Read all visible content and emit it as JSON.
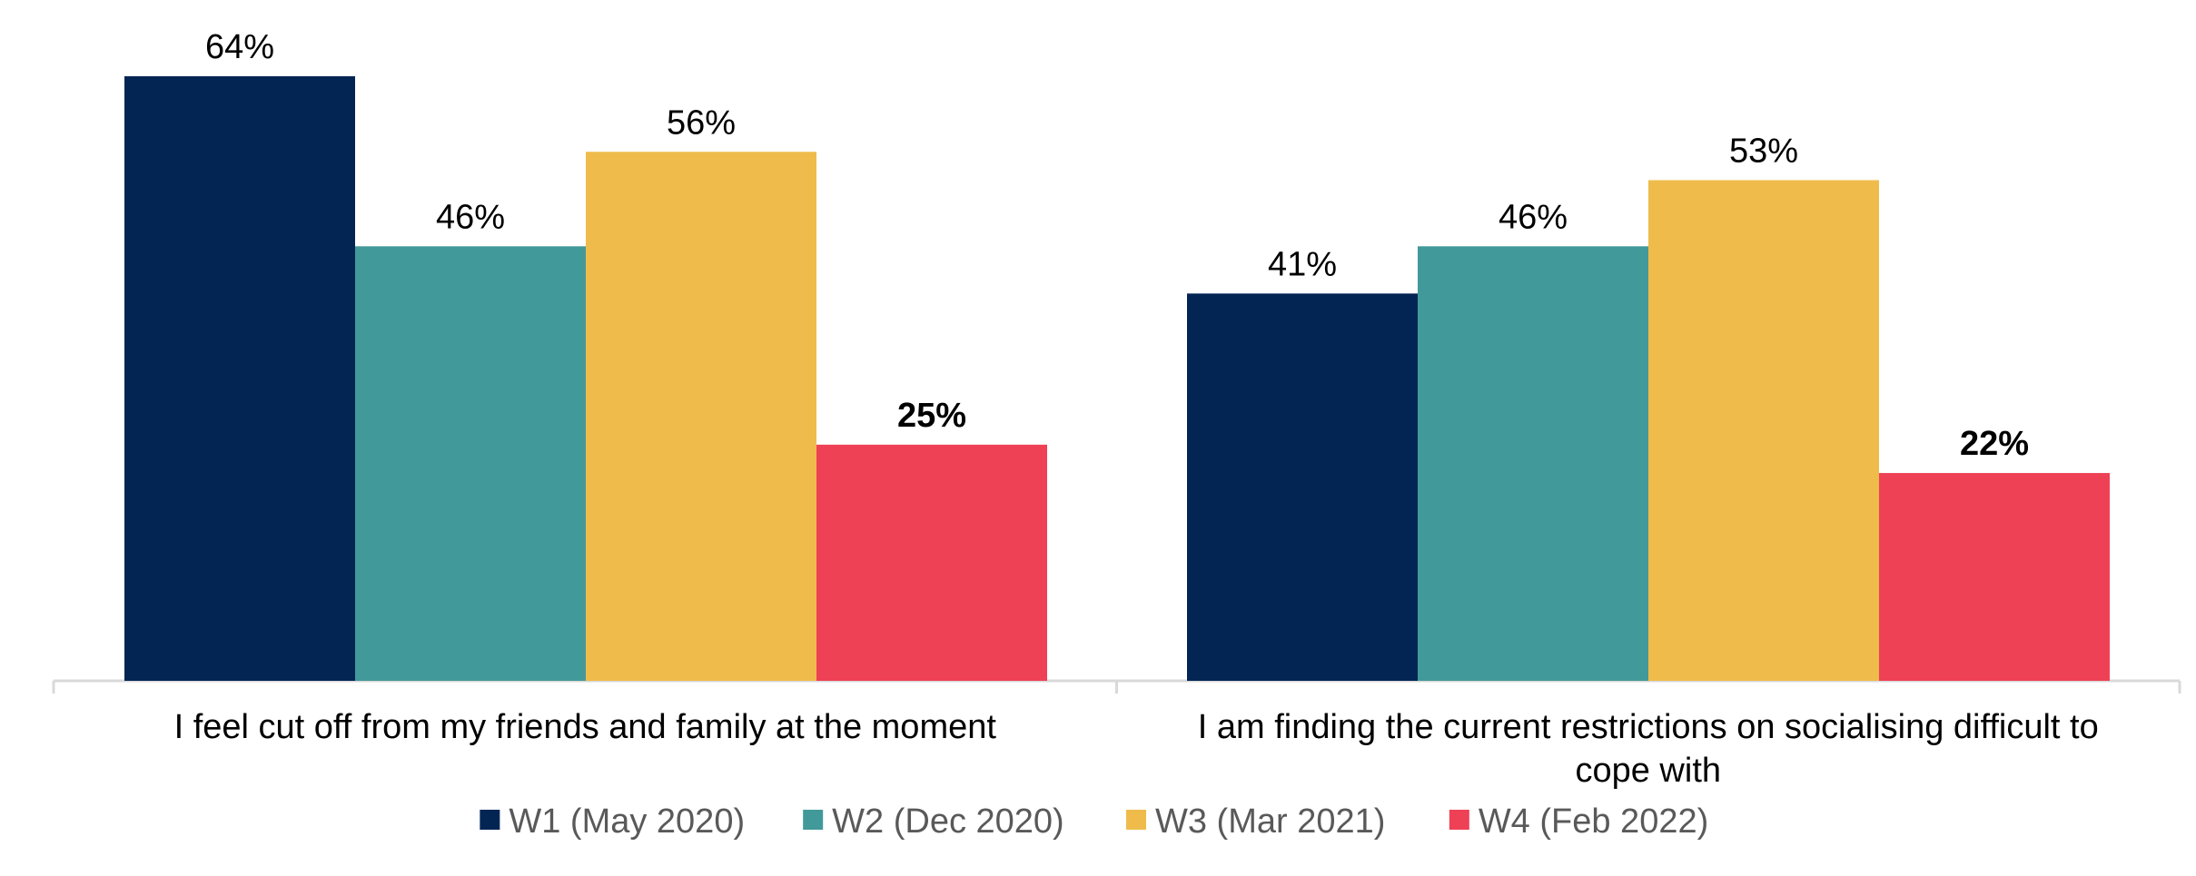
{
  "chart_data": {
    "type": "bar",
    "title": "",
    "xlabel": "",
    "ylabel": "",
    "ylim": [
      0,
      64
    ],
    "grid": false,
    "legend_position": "bottom",
    "categories": [
      [
        "I feel cut off from my friends and family at the moment"
      ],
      [
        "I am finding the current restrictions on socialising difficult to",
        "cope with"
      ]
    ],
    "series": [
      {
        "name": "W1 (May 2020)",
        "color": "#032554",
        "values": [
          64,
          41
        ],
        "labels": [
          "64%",
          "41%"
        ],
        "bold": false
      },
      {
        "name": "W2 (Dec 2020)",
        "color": "#42999A",
        "values": [
          46,
          46
        ],
        "labels": [
          "46%",
          "46%"
        ],
        "bold": false
      },
      {
        "name": "W3 (Mar 2021)",
        "color": "#EFBC4B",
        "values": [
          56,
          53
        ],
        "labels": [
          "56%",
          "53%"
        ],
        "bold": false
      },
      {
        "name": "W4 (Feb 2022)",
        "color": "#EF4155",
        "values": [
          25,
          22
        ],
        "labels": [
          "25%",
          "22%"
        ],
        "bold": true
      }
    ]
  }
}
